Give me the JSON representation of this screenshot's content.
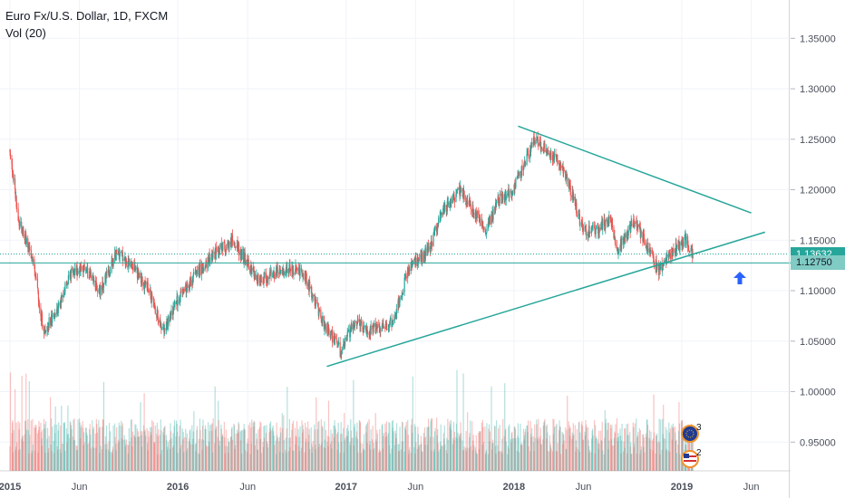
{
  "legend": {
    "symbol": "Euro Fx/U.S. Dollar, 1D, FXCM",
    "volume": "Vol (20)"
  },
  "price_badges": {
    "last": "1.13632",
    "support": "1.12750"
  },
  "colors": {
    "up": "#26a69a",
    "down": "#ef5350",
    "trendline": "#26a69a",
    "price_line": "#26a69a",
    "arrow": "#2962ff",
    "grid": "#f0f3fa"
  },
  "events": [
    {
      "icon": "eu-flag-icon",
      "count": "3"
    },
    {
      "icon": "us-flag-icon",
      "count": "2"
    }
  ],
  "chart_data": {
    "type": "candlestick",
    "y_ticks": [
      "1.35000",
      "1.30000",
      "1.25000",
      "1.20000",
      "1.15000",
      "1.10000",
      "1.05000",
      "1.00000",
      "0.95000"
    ],
    "x_ticks": [
      "2015",
      "Jun",
      "2016",
      "Jun",
      "2017",
      "Jun",
      "2018",
      "Jun",
      "2019",
      "Jun"
    ],
    "ylim": [
      0.935,
      1.37
    ],
    "price_path": [
      [
        "2015-01-01",
        1.24
      ],
      [
        "2015-01-20",
        1.17
      ],
      [
        "2015-02-20",
        1.13
      ],
      [
        "2015-03-15",
        1.06
      ],
      [
        "2015-04-15",
        1.08
      ],
      [
        "2015-05-15",
        1.12
      ],
      [
        "2015-06-15",
        1.12
      ],
      [
        "2015-07-15",
        1.1
      ],
      [
        "2015-08-25",
        1.14
      ],
      [
        "2015-09-30",
        1.12
      ],
      [
        "2015-10-30",
        1.1
      ],
      [
        "2015-11-30",
        1.06
      ],
      [
        "2015-12-31",
        1.09
      ],
      [
        "2016-02-15",
        1.12
      ],
      [
        "2016-03-31",
        1.14
      ],
      [
        "2016-05-01",
        1.15
      ],
      [
        "2016-06-24",
        1.11
      ],
      [
        "2016-08-15",
        1.12
      ],
      [
        "2016-09-30",
        1.12
      ],
      [
        "2016-11-10",
        1.07
      ],
      [
        "2016-12-20",
        1.04
      ],
      [
        "2017-01-20",
        1.07
      ],
      [
        "2017-02-20",
        1.06
      ],
      [
        "2017-04-15",
        1.07
      ],
      [
        "2017-05-15",
        1.12
      ],
      [
        "2017-06-30",
        1.14
      ],
      [
        "2017-07-31",
        1.18
      ],
      [
        "2017-09-08",
        1.2
      ],
      [
        "2017-10-31",
        1.16
      ],
      [
        "2017-11-30",
        1.19
      ],
      [
        "2017-12-31",
        1.2
      ],
      [
        "2018-02-15",
        1.25
      ],
      [
        "2018-03-31",
        1.23
      ],
      [
        "2018-04-20",
        1.22
      ],
      [
        "2018-05-31",
        1.16
      ],
      [
        "2018-06-30",
        1.16
      ],
      [
        "2018-07-31",
        1.17
      ],
      [
        "2018-08-15",
        1.14
      ],
      [
        "2018-09-20",
        1.17
      ],
      [
        "2018-11-12",
        1.12
      ],
      [
        "2018-12-15",
        1.14
      ],
      [
        "2019-01-10",
        1.15
      ],
      [
        "2019-01-25",
        1.1363
      ]
    ],
    "last_close": 1.13632,
    "horizontal_line": 1.1275,
    "trendlines": [
      {
        "from": [
          "2016-11-20",
          1.025
        ],
        "to": [
          "2019-07-01",
          1.158
        ]
      },
      {
        "from": [
          "2018-01-10",
          1.263
        ],
        "to": [
          "2019-06-01",
          1.177
        ]
      }
    ]
  }
}
